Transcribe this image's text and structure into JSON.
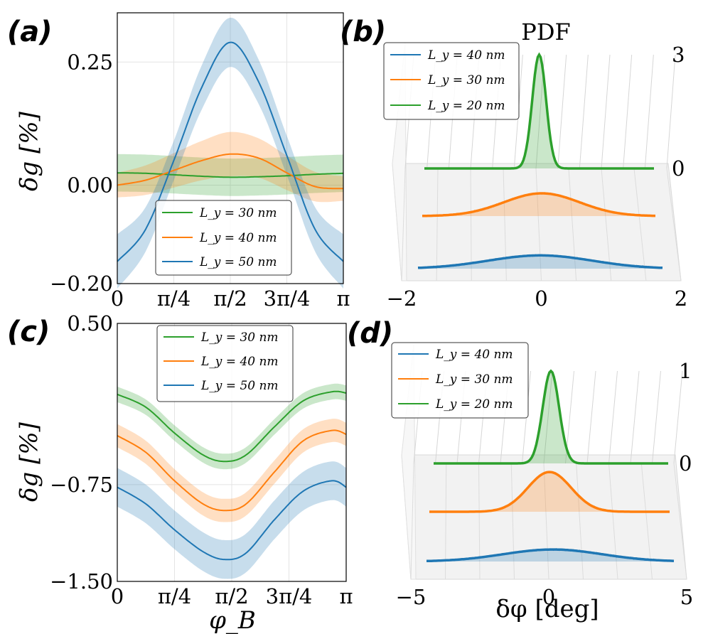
{
  "colors": {
    "blue": "#1f77b4",
    "orange": "#ff7f0e",
    "green": "#2ca02c"
  },
  "chart_data": [
    {
      "panel": "(a)",
      "type": "line",
      "xlabel": "",
      "ylabel": "δg [%]",
      "xlim": [
        0,
        3.1416
      ],
      "ylim": [
        -0.2,
        0.35
      ],
      "xticks": [
        0,
        0.7854,
        1.5708,
        2.3562,
        3.1416
      ],
      "xtick_labels": [
        "0",
        "π/4",
        "π/2",
        "3π/4",
        "π"
      ],
      "yticks": [
        -0.2,
        0,
        0.25
      ],
      "ytick_labels": [
        "−0.20",
        "0.00",
        "0.25"
      ],
      "legend": {
        "placement": "lower-center",
        "entries": [
          "L_y = 30 nm",
          "L_y = 40 nm",
          "L_y = 50 nm"
        ]
      },
      "series": [
        {
          "name": "L_y = 30 nm",
          "color": "green",
          "x": [
            0,
            0.3927,
            0.7854,
            1.1781,
            1.5708,
            1.9635,
            2.3562,
            2.7489,
            3.1416
          ],
          "y": [
            0.025,
            0.024,
            0.021,
            0.018,
            0.016,
            0.017,
            0.019,
            0.022,
            0.024
          ],
          "band": 0.038
        },
        {
          "name": "L_y = 40 nm",
          "color": "orange",
          "x": [
            0,
            0.3927,
            0.7854,
            1.1781,
            1.5708,
            1.9635,
            2.3562,
            2.7489,
            3.1416
          ],
          "y": [
            0.0,
            0.01,
            0.03,
            0.05,
            0.063,
            0.055,
            0.025,
            -0.003,
            -0.007
          ],
          "band": [
            0.025,
            0.03,
            0.035,
            0.04,
            0.045,
            0.04,
            0.035,
            0.03,
            0.025
          ]
        },
        {
          "name": "L_y = 50 nm",
          "color": "blue",
          "x": [
            0,
            0.3927,
            0.7854,
            1.1781,
            1.5708,
            1.9635,
            2.3562,
            2.7489,
            3.1416
          ],
          "y": [
            -0.155,
            -0.09,
            0.05,
            0.2,
            0.29,
            0.21,
            0.06,
            -0.09,
            -0.155
          ],
          "band": [
            0.055,
            0.045,
            0.04,
            0.045,
            0.05,
            0.045,
            0.04,
            0.045,
            0.055
          ]
        }
      ]
    },
    {
      "panel": "(b)",
      "type": "area",
      "title": "PDF",
      "xlim": [
        -2,
        2
      ],
      "xticks": [
        -2,
        0,
        2
      ],
      "xtick_labels": [
        "−2",
        "0",
        "2"
      ],
      "zticks": [
        0,
        3
      ],
      "ztick_labels": [
        "0",
        "3"
      ],
      "legend": {
        "placement": "top-left",
        "entries": [
          "L_y = 40 nm",
          "L_y = 30 nm",
          "L_y = 20 nm"
        ]
      },
      "series": [
        {
          "name": "L_y = 20 nm",
          "color": "green",
          "mu": 0.0,
          "sigma": 0.12,
          "peak": 3.0
        },
        {
          "name": "L_y = 30 nm",
          "color": "orange",
          "mu": 0.05,
          "sigma": 0.65,
          "peak": 0.6
        },
        {
          "name": "L_y = 40 nm",
          "color": "blue",
          "mu": 0.0,
          "sigma": 0.85,
          "peak": 0.35
        }
      ]
    },
    {
      "panel": "(c)",
      "type": "line",
      "xlabel": "φ_B",
      "ylabel": "δg [%]",
      "xlim": [
        0,
        3.1416
      ],
      "ylim": [
        -1.5,
        0.5
      ],
      "xticks": [
        0,
        0.7854,
        1.5708,
        2.3562,
        3.1416
      ],
      "xtick_labels": [
        "0",
        "π/4",
        "π/2",
        "3π/4",
        "π"
      ],
      "yticks": [
        -1.5,
        -0.75,
        0.5
      ],
      "ytick_labels": [
        "−1.50",
        "−0.75",
        "0.50"
      ],
      "legend": {
        "placement": "top-center",
        "entries": [
          "L_y = 30 nm",
          "L_y = 40 nm",
          "L_y = 50 nm"
        ]
      },
      "series": [
        {
          "name": "L_y = 30 nm",
          "color": "green",
          "x": [
            0,
            0.3927,
            0.7854,
            1.1781,
            1.4726,
            1.7671,
            2.1598,
            2.5525,
            2.9452,
            3.1416
          ],
          "y": [
            -0.05,
            -0.15,
            -0.35,
            -0.52,
            -0.57,
            -0.52,
            -0.3,
            -0.1,
            -0.03,
            -0.04
          ],
          "band": 0.06
        },
        {
          "name": "L_y = 40 nm",
          "color": "orange",
          "x": [
            0,
            0.3927,
            0.7854,
            1.1781,
            1.4726,
            1.7671,
            2.1598,
            2.5525,
            2.9452,
            3.1416
          ],
          "y": [
            -0.37,
            -0.5,
            -0.72,
            -0.9,
            -0.95,
            -0.9,
            -0.65,
            -0.41,
            -0.33,
            -0.36
          ],
          "band": 0.09
        },
        {
          "name": "L_y = 50 nm",
          "color": "blue",
          "x": [
            0,
            0.3927,
            0.7854,
            1.1781,
            1.4726,
            1.7671,
            2.1598,
            2.5525,
            2.9452,
            3.1416
          ],
          "y": [
            -0.77,
            -0.9,
            -1.1,
            -1.27,
            -1.33,
            -1.28,
            -1.02,
            -0.8,
            -0.72,
            -0.77
          ],
          "band": 0.15
        }
      ]
    },
    {
      "panel": "(d)",
      "type": "area",
      "xlabel": "δφ [deg]",
      "xlim": [
        -5,
        5
      ],
      "xticks": [
        -5,
        0,
        5
      ],
      "xtick_labels": [
        "−5",
        "0",
        "5"
      ],
      "zticks": [
        0,
        1
      ],
      "ztick_labels": [
        "0",
        "1"
      ],
      "legend": {
        "placement": "top-left",
        "entries": [
          "L_y = 40 nm",
          "L_y = 30 nm",
          "L_y = 20 nm"
        ]
      },
      "series": [
        {
          "name": "L_y = 20 nm",
          "color": "green",
          "mu": 0.0,
          "sigma": 0.35,
          "peak": 1.0
        },
        {
          "name": "L_y = 30 nm",
          "color": "orange",
          "mu": 0.0,
          "sigma": 0.9,
          "peak": 0.43
        },
        {
          "name": "L_y = 40 nm",
          "color": "blue",
          "mu": 0.1,
          "sigma": 2.0,
          "peak": 0.13
        }
      ]
    }
  ]
}
